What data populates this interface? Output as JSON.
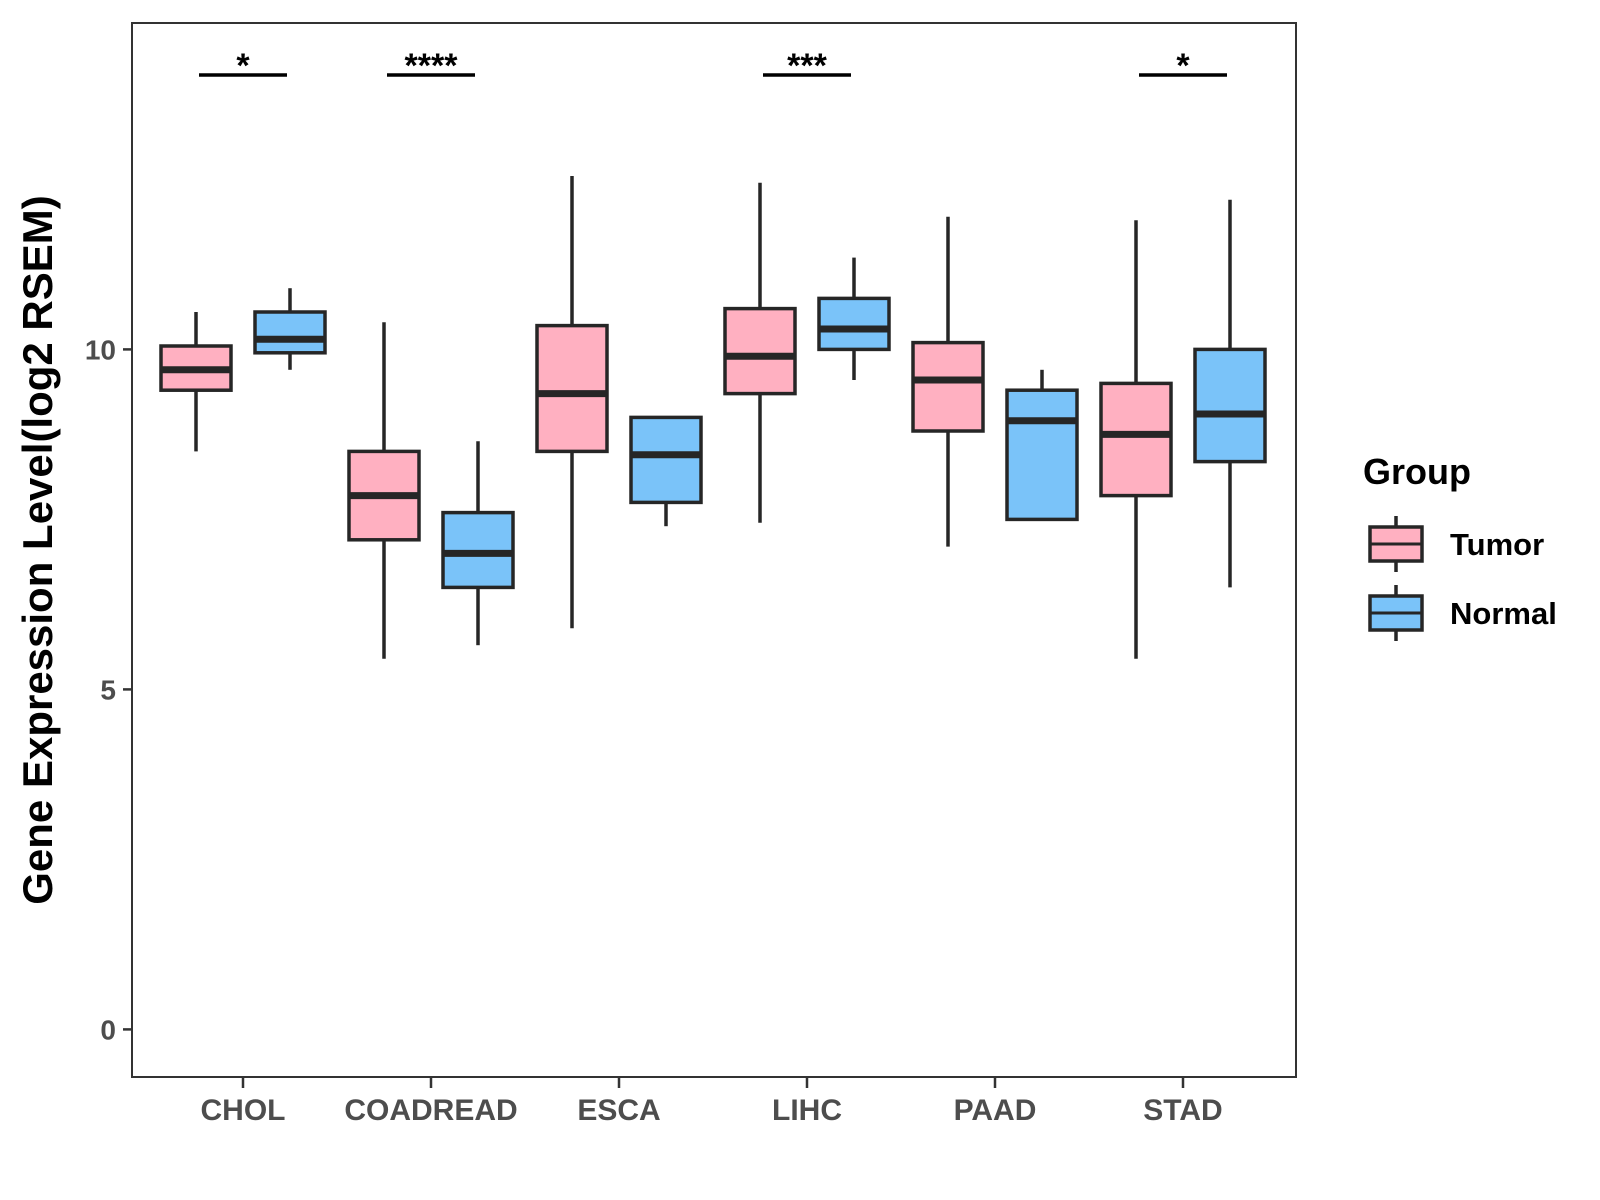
{
  "chart_data": {
    "type": "boxplot",
    "title": "",
    "xlabel": "",
    "ylabel": "Gene Expression Level(log2 RSEM)",
    "ylim": [
      -0.7,
      14.8
    ],
    "yticks": [
      0,
      5,
      10
    ],
    "grid": false,
    "categories": [
      "CHOL",
      "COADREAD",
      "ESCA",
      "LIHC",
      "PAAD",
      "STAD"
    ],
    "legend": {
      "title": "Group",
      "position": "right",
      "entries": [
        {
          "name": "Tumor",
          "color": "#FFB0C1"
        },
        {
          "name": "Normal",
          "color": "#7AC3F9"
        }
      ]
    },
    "series": [
      {
        "name": "Tumor",
        "color": "#FFB0C1",
        "boxes": [
          {
            "min": 8.5,
            "q1": 9.4,
            "median": 9.7,
            "q3": 10.05,
            "max": 10.55
          },
          {
            "min": 5.45,
            "q1": 7.2,
            "median": 7.85,
            "q3": 8.5,
            "max": 10.4
          },
          {
            "min": 5.9,
            "q1": 8.5,
            "median": 9.35,
            "q3": 10.35,
            "max": 12.55
          },
          {
            "min": 7.45,
            "q1": 9.35,
            "median": 9.9,
            "q3": 10.6,
            "max": 12.45
          },
          {
            "min": 7.1,
            "q1": 8.8,
            "median": 9.55,
            "q3": 10.1,
            "max": 11.95
          },
          {
            "min": 5.45,
            "q1": 7.85,
            "median": 8.75,
            "q3": 9.5,
            "max": 11.9
          }
        ]
      },
      {
        "name": "Normal",
        "color": "#7AC3F9",
        "boxes": [
          {
            "min": 9.7,
            "q1": 9.95,
            "median": 10.15,
            "q3": 10.55,
            "max": 10.9
          },
          {
            "min": 5.65,
            "q1": 6.5,
            "median": 7.0,
            "q3": 7.6,
            "max": 8.65
          },
          {
            "min": 7.4,
            "q1": 7.75,
            "median": 8.45,
            "q3": 9.0,
            "max": 9.0
          },
          {
            "min": 9.55,
            "q1": 10.0,
            "median": 10.3,
            "q3": 10.75,
            "max": 11.35
          },
          {
            "min": 7.5,
            "q1": 7.5,
            "median": 8.95,
            "q3": 9.4,
            "max": 9.7
          },
          {
            "min": 6.5,
            "q1": 8.35,
            "median": 9.05,
            "q3": 10.0,
            "max": 12.2
          }
        ]
      }
    ],
    "significance": [
      {
        "category": "CHOL",
        "label": "*"
      },
      {
        "category": "COADREAD",
        "label": "****"
      },
      {
        "category": "LIHC",
        "label": "***"
      },
      {
        "category": "STAD",
        "label": "*"
      }
    ]
  }
}
